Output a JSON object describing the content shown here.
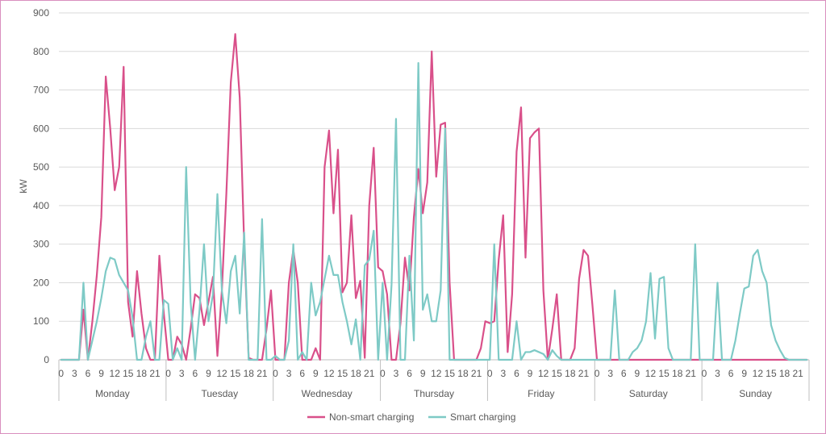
{
  "colors": {
    "non_smart": "#d9508a",
    "smart": "#7ecac6",
    "grid": "#d9d9d9",
    "axis": "#bfbfbf",
    "text": "#595959",
    "frame": "#d98fbe"
  },
  "chart_data": {
    "type": "line",
    "ylabel": "kW",
    "ylim": [
      0,
      900
    ],
    "yticks": [
      "0",
      "100",
      "200",
      "300",
      "400",
      "500",
      "600",
      "700",
      "800",
      "900"
    ],
    "hour_tick_labels": [
      "0",
      "3",
      "6",
      "9",
      "12",
      "15",
      "18",
      "21"
    ],
    "days": [
      "Monday",
      "Tuesday",
      "Wednesday",
      "Thursday",
      "Friday",
      "Saturday",
      "Sunday"
    ],
    "legend_position": "bottom",
    "series": [
      {
        "name": "Non-smart charging",
        "values": [
          0,
          0,
          0,
          0,
          0,
          130,
          0,
          100,
          220,
          370,
          735,
          600,
          440,
          500,
          760,
          150,
          60,
          230,
          120,
          30,
          0,
          0,
          270,
          120,
          0,
          0,
          60,
          40,
          0,
          80,
          170,
          160,
          90,
          150,
          215,
          10,
          180,
          430,
          720,
          845,
          680,
          300,
          5,
          0,
          0,
          0,
          80,
          180,
          0,
          0,
          0,
          200,
          285,
          200,
          0,
          0,
          0,
          30,
          0,
          500,
          595,
          380,
          545,
          175,
          200,
          375,
          160,
          205,
          5,
          400,
          550,
          240,
          230,
          170,
          0,
          0,
          95,
          265,
          180,
          370,
          495,
          380,
          460,
          800,
          475,
          610,
          615,
          200,
          0,
          0,
          0,
          0,
          0,
          0,
          30,
          100,
          95,
          100,
          260,
          375,
          20,
          170,
          540,
          655,
          265,
          575,
          590,
          600,
          180,
          0,
          80,
          170,
          0,
          0,
          0,
          30,
          210,
          285,
          270,
          140,
          0,
          0,
          0,
          0,
          0,
          0,
          0,
          0,
          0,
          0,
          0,
          0,
          0,
          0,
          0,
          0,
          0,
          0,
          0,
          0,
          0,
          0,
          0,
          0,
          0,
          0,
          0,
          0,
          0,
          0,
          0,
          0,
          0,
          0,
          0,
          0,
          0,
          0,
          0,
          0,
          0,
          0,
          0,
          0,
          0,
          0,
          0,
          0
        ]
      },
      {
        "name": "Smart charging",
        "values": [
          0,
          0,
          0,
          0,
          0,
          200,
          0,
          50,
          100,
          160,
          230,
          265,
          260,
          220,
          200,
          180,
          110,
          0,
          0,
          60,
          100,
          0,
          0,
          155,
          145,
          0,
          30,
          0,
          500,
          150,
          0,
          130,
          300,
          100,
          170,
          430,
          180,
          95,
          230,
          270,
          120,
          330,
          0,
          0,
          0,
          365,
          0,
          0,
          10,
          0,
          0,
          50,
          300,
          0,
          20,
          0,
          200,
          115,
          150,
          210,
          270,
          220,
          220,
          150,
          100,
          40,
          105,
          0,
          245,
          260,
          335,
          0,
          200,
          0,
          195,
          625,
          0,
          0,
          270,
          50,
          770,
          130,
          170,
          100,
          100,
          180,
          600,
          0,
          0,
          0,
          0,
          0,
          0,
          0,
          0,
          0,
          0,
          300,
          0,
          0,
          0,
          0,
          100,
          0,
          20,
          20,
          25,
          20,
          15,
          0,
          25,
          10,
          0,
          0,
          0,
          0,
          0,
          0,
          0,
          0,
          0,
          0,
          0,
          0,
          180,
          0,
          0,
          0,
          20,
          30,
          50,
          100,
          225,
          55,
          210,
          215,
          30,
          0,
          0,
          0,
          0,
          0,
          300,
          0,
          0,
          0,
          0,
          200,
          0,
          0,
          0,
          50,
          120,
          185,
          190,
          270,
          285,
          230,
          200,
          90,
          50,
          25,
          5,
          0,
          0,
          0,
          0,
          0
        ]
      }
    ]
  }
}
